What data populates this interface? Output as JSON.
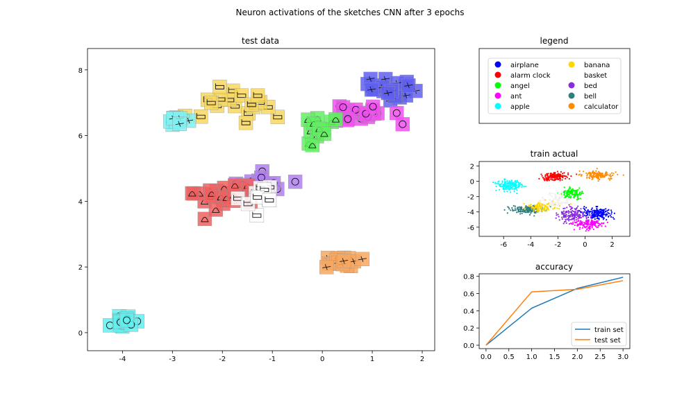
{
  "figure": {
    "title": "Neuron activations of the sketches CNN after 3 epochs"
  },
  "legend_panel": {
    "title": "legend",
    "entries": [
      {
        "label": "airplane",
        "color": "#0000ff"
      },
      {
        "label": "alarm clock",
        "color": "#ff0000"
      },
      {
        "label": "angel",
        "color": "#00ff00"
      },
      {
        "label": "ant",
        "color": "#ff00ff"
      },
      {
        "label": "apple",
        "color": "#00ffff"
      },
      {
        "label": "banana",
        "color": "#ffd700"
      },
      {
        "label": "basket",
        "color": "#ffffff"
      },
      {
        "label": "bed",
        "color": "#8a2be2"
      },
      {
        "label": "bell",
        "color": "#2f7f7f"
      },
      {
        "label": "calculator",
        "color": "#ff8c00"
      }
    ]
  },
  "chart_data": [
    {
      "id": "test",
      "type": "scatter",
      "title": "test data",
      "xlim": [
        -4.7,
        2.25
      ],
      "ylim": [
        -0.55,
        8.65
      ],
      "xticks": [
        -4,
        -3,
        -2,
        -1,
        0,
        1,
        2
      ],
      "yticks": [
        0,
        2,
        4,
        6,
        8
      ],
      "marker": "sketch-thumbnail",
      "clusters": [
        {
          "class": "airplane",
          "color": "#6060f0",
          "center": [
            1.35,
            7.4
          ],
          "spread": [
            0.45,
            0.35
          ],
          "count": 26
        },
        {
          "class": "ant",
          "color": "#f050f0",
          "center": [
            0.75,
            6.65
          ],
          "spread": [
            0.55,
            0.4
          ],
          "count": 22
        },
        {
          "class": "angel",
          "color": "#60f060",
          "center": [
            -0.1,
            6.2
          ],
          "spread": [
            0.35,
            0.35
          ],
          "count": 14
        },
        {
          "class": "banana",
          "color": "#f8d860",
          "center": [
            -1.5,
            7.0
          ],
          "spread": [
            1.0,
            0.6
          ],
          "count": 20
        },
        {
          "class": "apple",
          "color": "#80f0f0",
          "center": [
            -2.9,
            6.4
          ],
          "spread": [
            0.25,
            0.2
          ],
          "count": 10
        },
        {
          "class": "bed",
          "color": "#b080f0",
          "center": [
            -1.1,
            4.6
          ],
          "spread": [
            0.6,
            0.35
          ],
          "count": 14
        },
        {
          "class": "alarm clock",
          "color": "#f06060",
          "center": [
            -2.1,
            4.1
          ],
          "spread": [
            0.7,
            0.45
          ],
          "count": 26
        },
        {
          "class": "basket",
          "color": "#ffffff",
          "center": [
            -1.3,
            4.1
          ],
          "spread": [
            0.45,
            0.4
          ],
          "count": 10
        },
        {
          "class": "calculator",
          "color": "#f8a860",
          "center": [
            0.35,
            2.15
          ],
          "spread": [
            0.35,
            0.18
          ],
          "count": 18
        },
        {
          "class": "apple",
          "color": "#60f0f0",
          "center": [
            -4.0,
            0.35
          ],
          "spread": [
            0.25,
            0.2
          ],
          "count": 14
        }
      ]
    },
    {
      "id": "train",
      "type": "scatter",
      "title": "train actual",
      "xlim": [
        -7.8,
        3.3
      ],
      "ylim": [
        -7.2,
        2.6
      ],
      "xticks": [
        -6,
        -4,
        -2,
        0,
        2
      ],
      "yticks": [
        2,
        0,
        -2,
        -4,
        -6
      ],
      "clusters": [
        {
          "class": "apple",
          "color": "#00ffff",
          "center": [
            -5.6,
            -0.5
          ],
          "spread": [
            1.0,
            0.8
          ],
          "count": 160
        },
        {
          "class": "alarm clock",
          "color": "#ff0000",
          "center": [
            -2.2,
            0.6
          ],
          "spread": [
            0.9,
            0.6
          ],
          "count": 150
        },
        {
          "class": "calculator",
          "color": "#ff8c00",
          "center": [
            1.0,
            0.8
          ],
          "spread": [
            1.2,
            0.6
          ],
          "count": 150
        },
        {
          "class": "angel",
          "color": "#00ff00",
          "center": [
            -1.0,
            -1.6
          ],
          "spread": [
            0.8,
            0.7
          ],
          "count": 130
        },
        {
          "class": "bell",
          "color": "#2f7f7f",
          "center": [
            -4.3,
            -3.7
          ],
          "spread": [
            1.2,
            0.5
          ],
          "count": 160
        },
        {
          "class": "banana",
          "color": "#ffd700",
          "center": [
            -3.3,
            -3.3
          ],
          "spread": [
            1.2,
            0.6
          ],
          "count": 110
        },
        {
          "class": "bed",
          "color": "#8a2be2",
          "center": [
            -1.0,
            -4.4
          ],
          "spread": [
            1.0,
            0.9
          ],
          "count": 150
        },
        {
          "class": "airplane",
          "color": "#0000ff",
          "center": [
            1.0,
            -4.2
          ],
          "spread": [
            1.0,
            0.8
          ],
          "count": 170
        },
        {
          "class": "ant",
          "color": "#ff00ff",
          "center": [
            0.2,
            -5.6
          ],
          "spread": [
            1.1,
            0.6
          ],
          "count": 150
        },
        {
          "class": "basket",
          "color": "#ffffff",
          "center": [
            -2.0,
            -2.5
          ],
          "spread": [
            1.2,
            1.0
          ],
          "count": 60
        }
      ]
    },
    {
      "id": "accuracy",
      "type": "line",
      "title": "accuracy",
      "xlim": [
        -0.15,
        3.15
      ],
      "ylim": [
        -0.04,
        0.83
      ],
      "xticks": [
        "0.0",
        "0.5",
        "1.0",
        "1.5",
        "2.0",
        "2.5",
        "3.0"
      ],
      "yticks": [
        "0.0",
        "0.2",
        "0.4",
        "0.6",
        "0.8"
      ],
      "x": [
        0,
        1,
        2,
        3
      ],
      "series": [
        {
          "name": "train set",
          "color": "#1f77b4",
          "values": [
            0.0,
            0.43,
            0.66,
            0.79
          ]
        },
        {
          "name": "test set",
          "color": "#ff7f0e",
          "values": [
            0.0,
            0.62,
            0.65,
            0.75
          ]
        }
      ],
      "legend_position": "lower-right"
    }
  ]
}
